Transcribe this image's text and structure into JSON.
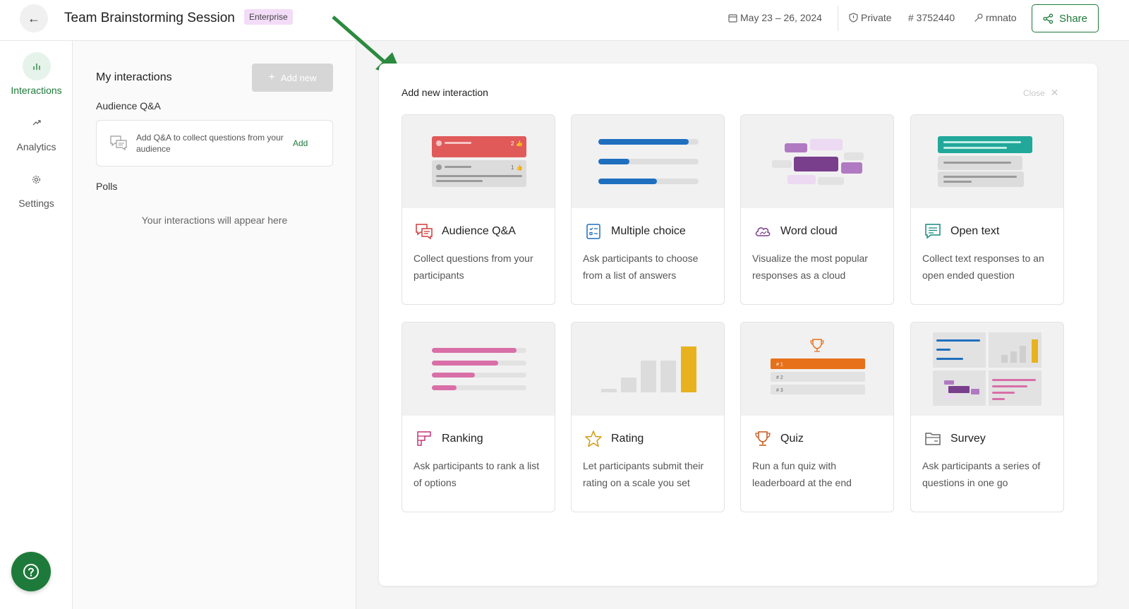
{
  "header": {
    "title": "Team Brainstorming Session",
    "badge": "Enterprise",
    "dates": "May 23 – 26, 2024",
    "privacy": "Private",
    "event_code": "# 3752440",
    "owner": "rmnato",
    "share_label": "Share"
  },
  "nav": {
    "items": [
      {
        "label": "Interactions",
        "icon": "bar-chart-icon",
        "active": true
      },
      {
        "label": "Analytics",
        "icon": "trend-icon"
      },
      {
        "label": "Settings",
        "icon": "gear-icon"
      }
    ]
  },
  "panel": {
    "title": "My interactions",
    "add_new_label": "Add new",
    "qa_section": "Audience Q&A",
    "qa_card_text": "Add Q&A to collect questions from your audience",
    "qa_card_add": "Add",
    "polls_section": "Polls",
    "empty_message": "Your interactions will appear here"
  },
  "modal": {
    "title": "Add new interaction",
    "close_label": "Close",
    "cards": [
      {
        "title": "Audience Q&A",
        "desc": "Collect questions from your participants",
        "icon": "qa-bubble-icon"
      },
      {
        "title": "Multiple choice",
        "desc": "Ask participants to choose from a list of answers",
        "icon": "checklist-icon"
      },
      {
        "title": "Word cloud",
        "desc": "Visualize the most popular responses as a cloud",
        "icon": "cloud-icon"
      },
      {
        "title": "Open text",
        "desc": "Collect text responses to an open ended question",
        "icon": "text-bubble-icon"
      },
      {
        "title": "Ranking",
        "desc": "Ask participants to rank a list of options",
        "icon": "ranking-icon"
      },
      {
        "title": "Rating",
        "desc": "Let participants submit their rating on a scale you set",
        "icon": "star-icon"
      },
      {
        "title": "Quiz",
        "desc": "Run a fun quiz with leaderboard at the end",
        "icon": "trophy-icon"
      },
      {
        "title": "Survey",
        "desc": "Ask participants a series of questions in one go",
        "icon": "folder-icon"
      }
    ],
    "previews": {
      "qa_likes": [
        "2",
        "1"
      ],
      "quiz_ranks": [
        "# 1",
        "# 2",
        "# 3"
      ]
    }
  },
  "colors": {
    "accent": "#1e7a3a",
    "qa_red": "#e05a5a",
    "blue": "#1f6fbf",
    "purple": "#7a3f8c",
    "teal": "#21a89a",
    "pink": "#d96fa8",
    "yellow": "#e8b21f",
    "orange": "#e6711a"
  }
}
